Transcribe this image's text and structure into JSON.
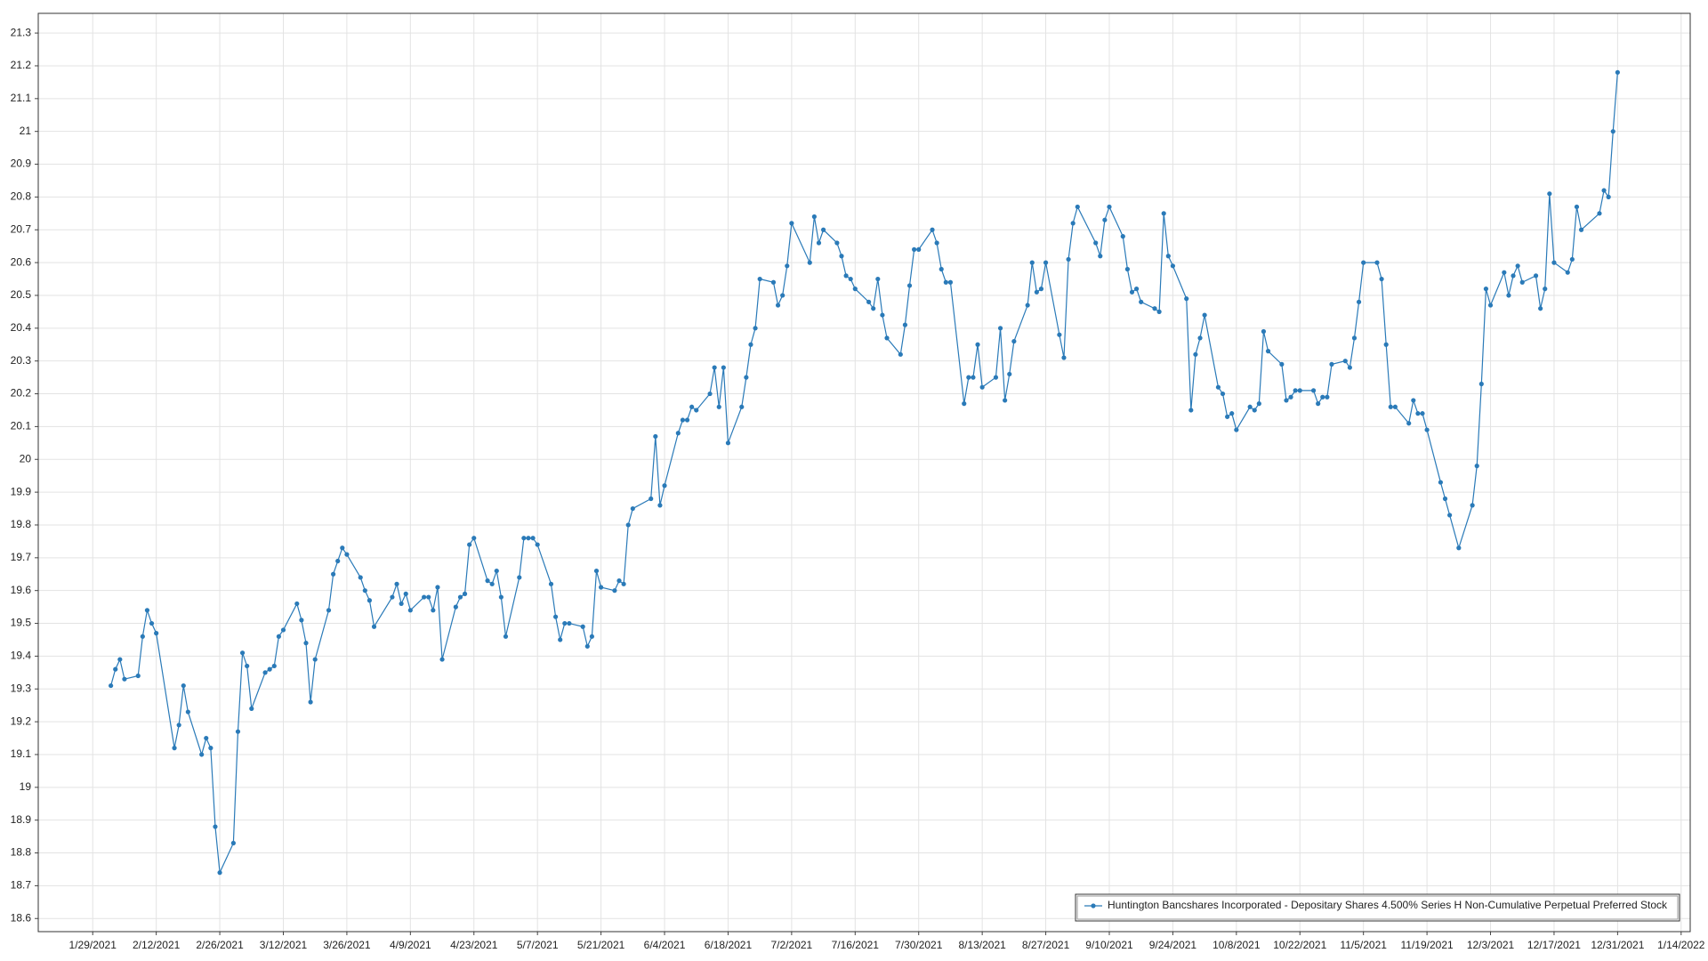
{
  "chart_data": {
    "type": "line",
    "x": [
      "2/2/2021",
      "2/3/2021",
      "2/4/2021",
      "2/5/2021",
      "2/8/2021",
      "2/9/2021",
      "2/10/2021",
      "2/11/2021",
      "2/12/2021",
      "2/16/2021",
      "2/17/2021",
      "2/18/2021",
      "2/19/2021",
      "2/22/2021",
      "2/23/2021",
      "2/24/2021",
      "2/25/2021",
      "2/26/2021",
      "3/1/2021",
      "3/2/2021",
      "3/3/2021",
      "3/4/2021",
      "3/5/2021",
      "3/8/2021",
      "3/9/2021",
      "3/10/2021",
      "3/11/2021",
      "3/12/2021",
      "3/15/2021",
      "3/16/2021",
      "3/17/2021",
      "3/18/2021",
      "3/19/2021",
      "3/22/2021",
      "3/23/2021",
      "3/24/2021",
      "3/25/2021",
      "3/26/2021",
      "3/29/2021",
      "3/30/2021",
      "3/31/2021",
      "4/1/2021",
      "4/5/2021",
      "4/6/2021",
      "4/7/2021",
      "4/8/2021",
      "4/9/2021",
      "4/12/2021",
      "4/13/2021",
      "4/14/2021",
      "4/15/2021",
      "4/16/2021",
      "4/19/2021",
      "4/20/2021",
      "4/21/2021",
      "4/22/2021",
      "4/23/2021",
      "4/26/2021",
      "4/27/2021",
      "4/28/2021",
      "4/29/2021",
      "4/30/2021",
      "5/3/2021",
      "5/4/2021",
      "5/5/2021",
      "5/6/2021",
      "5/7/2021",
      "5/10/2021",
      "5/11/2021",
      "5/12/2021",
      "5/13/2021",
      "5/14/2021",
      "5/17/2021",
      "5/18/2021",
      "5/19/2021",
      "5/20/2021",
      "5/21/2021",
      "5/24/2021",
      "5/25/2021",
      "5/26/2021",
      "5/27/2021",
      "5/28/2021",
      "6/1/2021",
      "6/2/2021",
      "6/3/2021",
      "6/4/2021",
      "6/7/2021",
      "6/8/2021",
      "6/9/2021",
      "6/10/2021",
      "6/11/2021",
      "6/14/2021",
      "6/15/2021",
      "6/16/2021",
      "6/17/2021",
      "6/18/2021",
      "6/21/2021",
      "6/22/2021",
      "6/23/2021",
      "6/24/2021",
      "6/25/2021",
      "6/28/2021",
      "6/29/2021",
      "6/30/2021",
      "7/1/2021",
      "7/2/2021",
      "7/6/2021",
      "7/7/2021",
      "7/8/2021",
      "7/9/2021",
      "7/12/2021",
      "7/13/2021",
      "7/14/2021",
      "7/15/2021",
      "7/16/2021",
      "7/19/2021",
      "7/20/2021",
      "7/21/2021",
      "7/22/2021",
      "7/23/2021",
      "7/26/2021",
      "7/27/2021",
      "7/28/2021",
      "7/29/2021",
      "7/30/2021",
      "8/2/2021",
      "8/3/2021",
      "8/4/2021",
      "8/5/2021",
      "8/6/2021",
      "8/9/2021",
      "8/10/2021",
      "8/11/2021",
      "8/12/2021",
      "8/13/2021",
      "8/16/2021",
      "8/17/2021",
      "8/18/2021",
      "8/19/2021",
      "8/20/2021",
      "8/23/2021",
      "8/24/2021",
      "8/25/2021",
      "8/26/2021",
      "8/27/2021",
      "8/30/2021",
      "8/31/2021",
      "9/1/2021",
      "9/2/2021",
      "9/3/2021",
      "9/7/2021",
      "9/8/2021",
      "9/9/2021",
      "9/10/2021",
      "9/13/2021",
      "9/14/2021",
      "9/15/2021",
      "9/16/2021",
      "9/17/2021",
      "9/20/2021",
      "9/21/2021",
      "9/22/2021",
      "9/23/2021",
      "9/24/2021",
      "9/27/2021",
      "9/28/2021",
      "9/29/2021",
      "9/30/2021",
      "10/1/2021",
      "10/4/2021",
      "10/5/2021",
      "10/6/2021",
      "10/7/2021",
      "10/8/2021",
      "10/11/2021",
      "10/12/2021",
      "10/13/2021",
      "10/14/2021",
      "10/15/2021",
      "10/18/2021",
      "10/19/2021",
      "10/20/2021",
      "10/21/2021",
      "10/22/2021",
      "10/25/2021",
      "10/26/2021",
      "10/27/2021",
      "10/28/2021",
      "10/29/2021",
      "11/1/2021",
      "11/2/2021",
      "11/3/2021",
      "11/4/2021",
      "11/5/2021",
      "11/8/2021",
      "11/9/2021",
      "11/10/2021",
      "11/11/2021",
      "11/12/2021",
      "11/15/2021",
      "11/16/2021",
      "11/17/2021",
      "11/18/2021",
      "11/19/2021",
      "11/22/2021",
      "11/23/2021",
      "11/24/2021",
      "11/26/2021",
      "11/29/2021",
      "11/30/2021",
      "12/1/2021",
      "12/2/2021",
      "12/3/2021",
      "12/6/2021",
      "12/7/2021",
      "12/8/2021",
      "12/9/2021",
      "12/10/2021",
      "12/13/2021",
      "12/14/2021",
      "12/15/2021",
      "12/16/2021",
      "12/17/2021",
      "12/20/2021",
      "12/21/2021",
      "12/22/2021",
      "12/23/2021",
      "12/27/2021",
      "12/28/2021",
      "12/29/2021",
      "12/30/2021",
      "12/31/2021"
    ],
    "series": [
      {
        "name": "Huntington Bancshares Incorporated - Depositary Shares 4.500% Series H Non-Cumulative Perpetual Preferred Stock",
        "color": "#2a7ab8",
        "values": [
          19.31,
          19.36,
          19.39,
          19.33,
          19.34,
          19.46,
          19.54,
          19.5,
          19.47,
          19.12,
          19.19,
          19.31,
          19.23,
          19.1,
          19.15,
          19.12,
          18.88,
          18.74,
          18.83,
          19.17,
          19.41,
          19.37,
          19.24,
          19.35,
          19.36,
          19.37,
          19.46,
          19.48,
          19.56,
          19.51,
          19.44,
          19.26,
          19.39,
          19.54,
          19.65,
          19.69,
          19.73,
          19.71,
          19.64,
          19.6,
          19.57,
          19.49,
          19.58,
          19.62,
          19.56,
          19.59,
          19.54,
          19.58,
          19.58,
          19.54,
          19.61,
          19.39,
          19.55,
          19.58,
          19.59,
          19.74,
          19.76,
          19.63,
          19.62,
          19.66,
          19.58,
          19.46,
          19.64,
          19.76,
          19.76,
          19.76,
          19.74,
          19.62,
          19.52,
          19.45,
          19.5,
          19.5,
          19.49,
          19.43,
          19.46,
          19.66,
          19.61,
          19.6,
          19.63,
          19.62,
          19.8,
          19.85,
          19.88,
          20.07,
          19.86,
          19.92,
          20.08,
          20.12,
          20.12,
          20.16,
          20.15,
          20.2,
          20.28,
          20.16,
          20.28,
          20.05,
          20.16,
          20.25,
          20.35,
          20.4,
          20.55,
          20.54,
          20.47,
          20.5,
          20.59,
          20.72,
          20.6,
          20.74,
          20.66,
          20.7,
          20.66,
          20.62,
          20.56,
          20.55,
          20.52,
          20.48,
          20.46,
          20.55,
          20.44,
          20.37,
          20.32,
          20.41,
          20.53,
          20.64,
          20.64,
          20.7,
          20.66,
          20.58,
          20.54,
          20.54,
          20.17,
          20.25,
          20.25,
          20.35,
          20.22,
          20.25,
          20.4,
          20.18,
          20.26,
          20.36,
          20.47,
          20.6,
          20.51,
          20.52,
          20.6,
          20.38,
          20.31,
          20.61,
          20.72,
          20.77,
          20.66,
          20.62,
          20.73,
          20.77,
          20.68,
          20.58,
          20.51,
          20.52,
          20.48,
          20.46,
          20.45,
          20.75,
          20.62,
          20.59,
          20.49,
          20.15,
          20.32,
          20.37,
          20.44,
          20.22,
          20.2,
          20.13,
          20.14,
          20.09,
          20.16,
          20.15,
          20.17,
          20.39,
          20.33,
          20.29,
          20.18,
          20.19,
          20.21,
          20.21,
          20.21,
          20.17,
          20.19,
          20.19,
          20.29,
          20.3,
          20.28,
          20.37,
          20.48,
          20.6,
          20.6,
          20.55,
          20.35,
          20.16,
          20.16,
          20.11,
          20.18,
          20.14,
          20.14,
          20.09,
          19.93,
          19.88,
          19.83,
          19.73,
          19.86,
          19.98,
          20.23,
          20.52,
          20.47,
          20.57,
          20.5,
          20.56,
          20.59,
          20.54,
          20.56,
          20.46,
          20.52,
          20.81,
          20.6,
          20.57,
          20.61,
          20.77,
          20.7,
          20.75,
          20.82,
          20.8,
          21.0,
          21.18
        ]
      }
    ],
    "xlim": [
      "1/17/2021",
      "1/16/2022"
    ],
    "xticks": [
      "1/29/2021",
      "2/12/2021",
      "2/26/2021",
      "3/12/2021",
      "3/26/2021",
      "4/9/2021",
      "4/23/2021",
      "5/7/2021",
      "5/21/2021",
      "6/4/2021",
      "6/18/2021",
      "7/2/2021",
      "7/16/2021",
      "7/30/2021",
      "8/13/2021",
      "8/27/2021",
      "9/10/2021",
      "9/24/2021",
      "10/8/2021",
      "10/22/2021",
      "11/5/2021",
      "11/19/2021",
      "12/3/2021",
      "12/17/2021",
      "12/31/2021",
      "1/14/2022"
    ],
    "ylim": [
      18.56,
      21.36
    ],
    "yticks": [
      18.6,
      18.7,
      18.8,
      18.9,
      19,
      19.1,
      19.2,
      19.3,
      19.4,
      19.5,
      19.6,
      19.7,
      19.8,
      19.9,
      20,
      20.1,
      20.2,
      20.3,
      20.4,
      20.5,
      20.6,
      20.7,
      20.8,
      20.9,
      21,
      21.1,
      21.2,
      21.3
    ],
    "grid": true,
    "legend": "lower right"
  }
}
